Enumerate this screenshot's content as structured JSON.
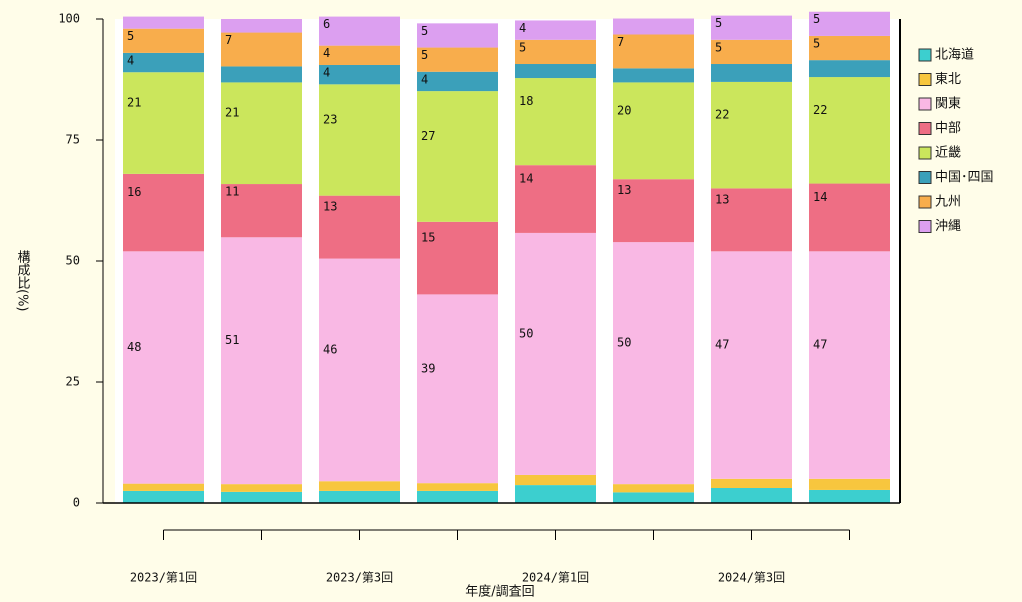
{
  "chart_data": {
    "type": "stacked_bar",
    "categories": [
      "2023/第1回",
      null,
      "2023/第3回",
      null,
      "2024/第1回",
      null,
      "2024/第3回",
      null
    ],
    "x_label": "年度/調査回",
    "y_label": "構成比(%)",
    "ylim": [
      0,
      100
    ],
    "yticks": [
      0,
      25,
      50,
      75,
      100
    ],
    "series": [
      {
        "name": "北海道",
        "color": "#3ccfcf",
        "values": [
          2.5,
          2.3,
          2.5,
          2.5,
          3.7,
          2.2,
          3.1,
          2.7
        ],
        "value_labels": [
          null,
          null,
          null,
          null,
          null,
          null,
          null,
          null
        ]
      },
      {
        "name": "東北",
        "color": "#f7c63e",
        "values": [
          1.5,
          1.6,
          2,
          1.6,
          2.1,
          1.7,
          1.9,
          2.3
        ],
        "value_labels": [
          null,
          null,
          null,
          null,
          null,
          null,
          null,
          null
        ]
      },
      {
        "name": "関東",
        "color": "#f9b8e4",
        "values": [
          48,
          51,
          46,
          39,
          50,
          50,
          47,
          47
        ],
        "value_labels": [
          "48",
          "51",
          "46",
          "39",
          "50",
          "50",
          "47",
          "47"
        ]
      },
      {
        "name": "中部",
        "color": "#ee6e84",
        "values": [
          16,
          11,
          13,
          15,
          14,
          13,
          13,
          14
        ],
        "value_labels": [
          "16",
          "11",
          "13",
          "15",
          "14",
          "13",
          "13",
          "14"
        ]
      },
      {
        "name": "近畿",
        "color": "#cbe65c",
        "values": [
          21,
          21,
          23,
          27,
          18,
          20,
          22,
          22
        ],
        "value_labels": [
          "21",
          "21",
          "23",
          "27",
          "18",
          "20",
          "22",
          "22"
        ]
      },
      {
        "name": "中国･四国",
        "color": "#3ba0ba",
        "values": [
          4,
          3.3,
          4,
          4,
          2.9,
          2.9,
          3.7,
          3.5
        ],
        "value_labels": [
          "4",
          null,
          "4",
          "4",
          null,
          null,
          null,
          null
        ]
      },
      {
        "name": "九州",
        "color": "#f8ad4c",
        "values": [
          5,
          7,
          4,
          5,
          5,
          7,
          5,
          5
        ],
        "value_labels": [
          "5",
          "7",
          "4",
          "5",
          "5",
          "7",
          "5",
          "5"
        ]
      },
      {
        "name": "沖縄",
        "color": "#dc9ff0",
        "values": [
          2.5,
          2.8,
          6,
          5,
          4,
          3.3,
          5,
          5
        ],
        "value_labels": [
          null,
          null,
          "6",
          "5",
          "4",
          null,
          "5",
          "5"
        ]
      }
    ]
  }
}
